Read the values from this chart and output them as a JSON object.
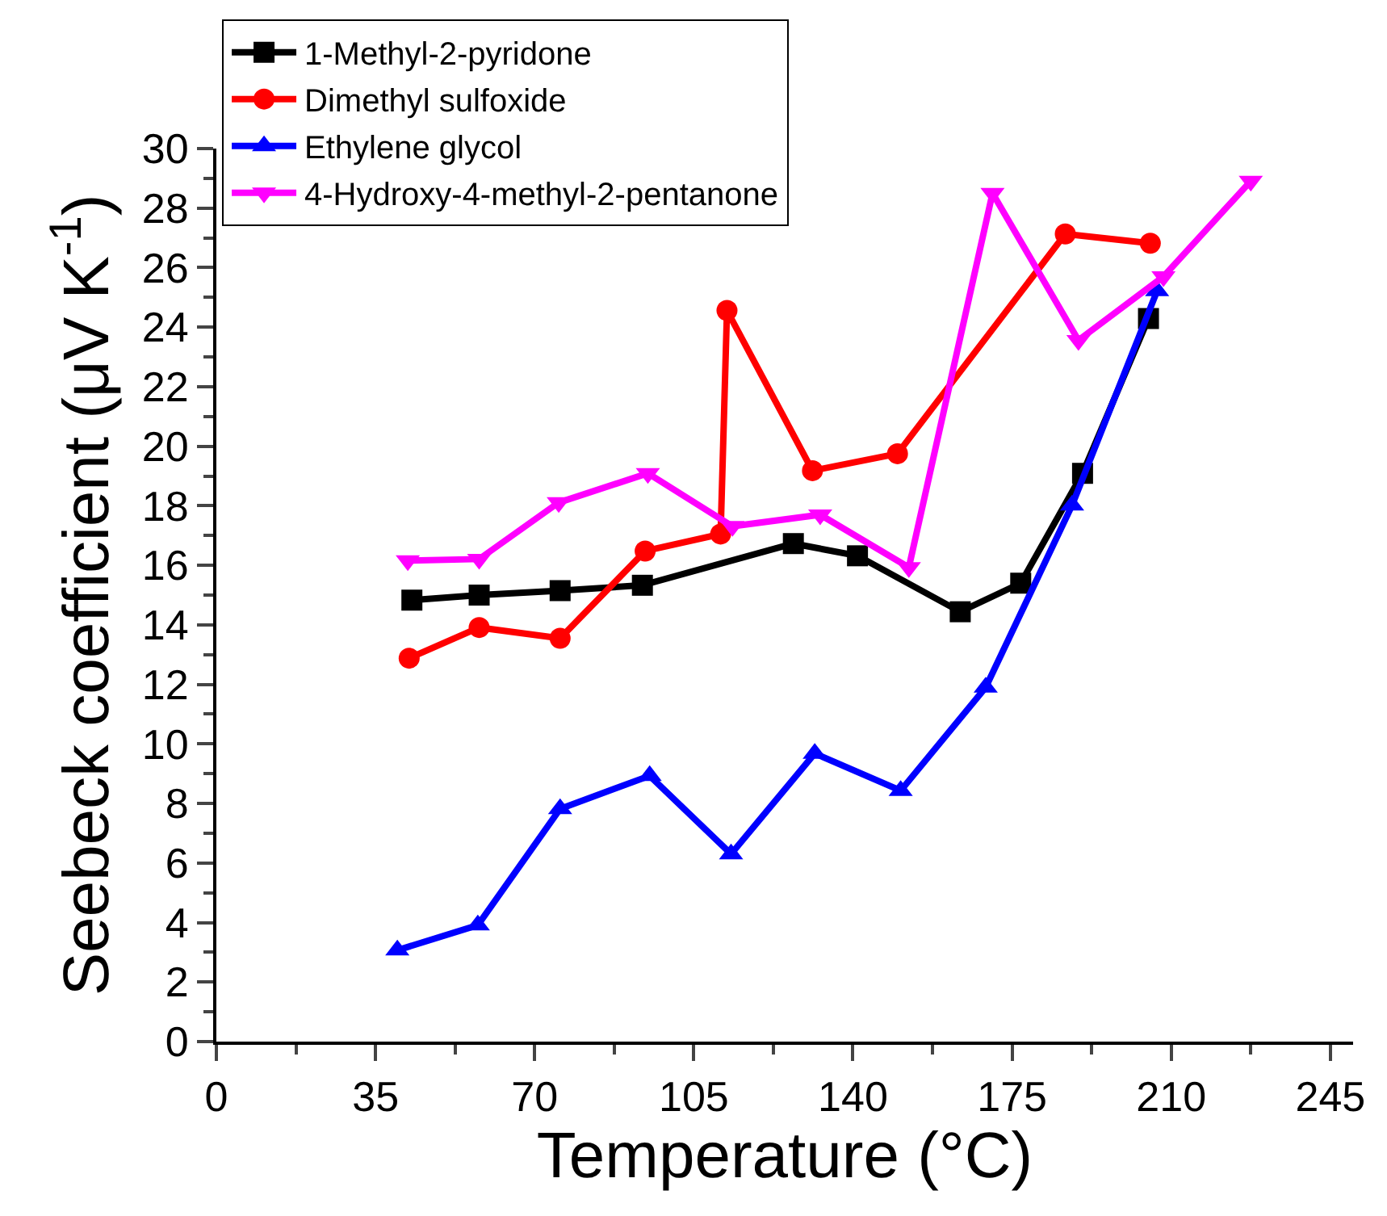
{
  "chart_data": {
    "type": "line",
    "xlabel": "Temperature (°C)",
    "ylabel": "Seebeck coefficient (μV K$^{-1}$)",
    "xlim": [
      0,
      250
    ],
    "xticks": [
      0,
      35,
      70,
      105,
      140,
      175,
      210,
      245
    ],
    "ylim": [
      0,
      30
    ],
    "yticks": [
      0,
      2,
      4,
      6,
      8,
      10,
      12,
      14,
      16,
      18,
      20,
      22,
      24,
      26,
      28,
      30
    ],
    "grid": false,
    "legend": "top left",
    "series": [
      {
        "name": "1-Methyl-2-pyridone",
        "color": "#000000",
        "marker": "square",
        "x": [
          43.0,
          57.8,
          75.6,
          93.7,
          126.9,
          141.0,
          163.6,
          176.9,
          190.5,
          205.0
        ],
        "values": [
          14.83,
          15.0,
          15.15,
          15.33,
          16.73,
          16.32,
          14.44,
          15.4,
          19.09,
          24.29
        ]
      },
      {
        "name": "Dimethyl sulfoxide",
        "color": "#ff0000",
        "marker": "circle",
        "x": [
          42.4,
          57.8,
          75.6,
          94.3,
          110.9,
          112.3,
          131.1,
          149.8,
          186.7,
          205.4
        ],
        "values": [
          12.88,
          13.91,
          13.55,
          16.48,
          17.05,
          24.56,
          19.18,
          19.75,
          27.13,
          26.82
        ]
      },
      {
        "name": "Ethylene glycol",
        "color": "#0000ff",
        "marker": "triangle",
        "x": [
          39.8,
          57.5,
          75.6,
          95.3,
          113.2,
          131.6,
          150.5,
          169.2,
          188.2,
          206.9
        ],
        "values": [
          3.07,
          3.91,
          7.82,
          8.93,
          6.3,
          9.68,
          8.43,
          11.9,
          18.02,
          25.22
        ]
      },
      {
        "name": "4-Hydroxy-4-methyl-2-pentanone",
        "color": "#ff00ff",
        "marker": "triangle-down",
        "x": [
          42.1,
          57.8,
          75.3,
          94.9,
          113.5,
          132.8,
          152.3,
          170.7,
          189.6,
          208.3,
          227.5
        ],
        "values": [
          16.16,
          16.21,
          18.11,
          19.09,
          17.31,
          17.7,
          15.93,
          28.5,
          23.56,
          25.7,
          28.91
        ]
      }
    ]
  }
}
